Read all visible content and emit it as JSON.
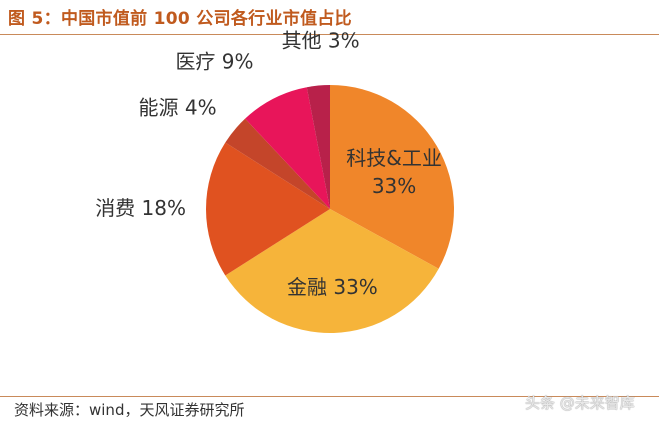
{
  "title": "图 5：中国市值前 100 公司各行业市值占比",
  "source": "资料来源：wind，天风证券研究所",
  "watermark": "头条 @未来智库",
  "chart_data": {
    "type": "pie",
    "slices": [
      {
        "label": "科技&工业",
        "value": 33,
        "color": "#f0862a"
      },
      {
        "label": "金融",
        "value": 33,
        "color": "#f6b43a"
      },
      {
        "label": "消费",
        "value": 18,
        "color": "#e05220"
      },
      {
        "label": "能源",
        "value": 4,
        "color": "#c4452a"
      },
      {
        "label": "医疗",
        "value": 9,
        "color": "#e8155a"
      },
      {
        "label": "其他",
        "value": 3,
        "color": "#b8214a"
      }
    ]
  }
}
